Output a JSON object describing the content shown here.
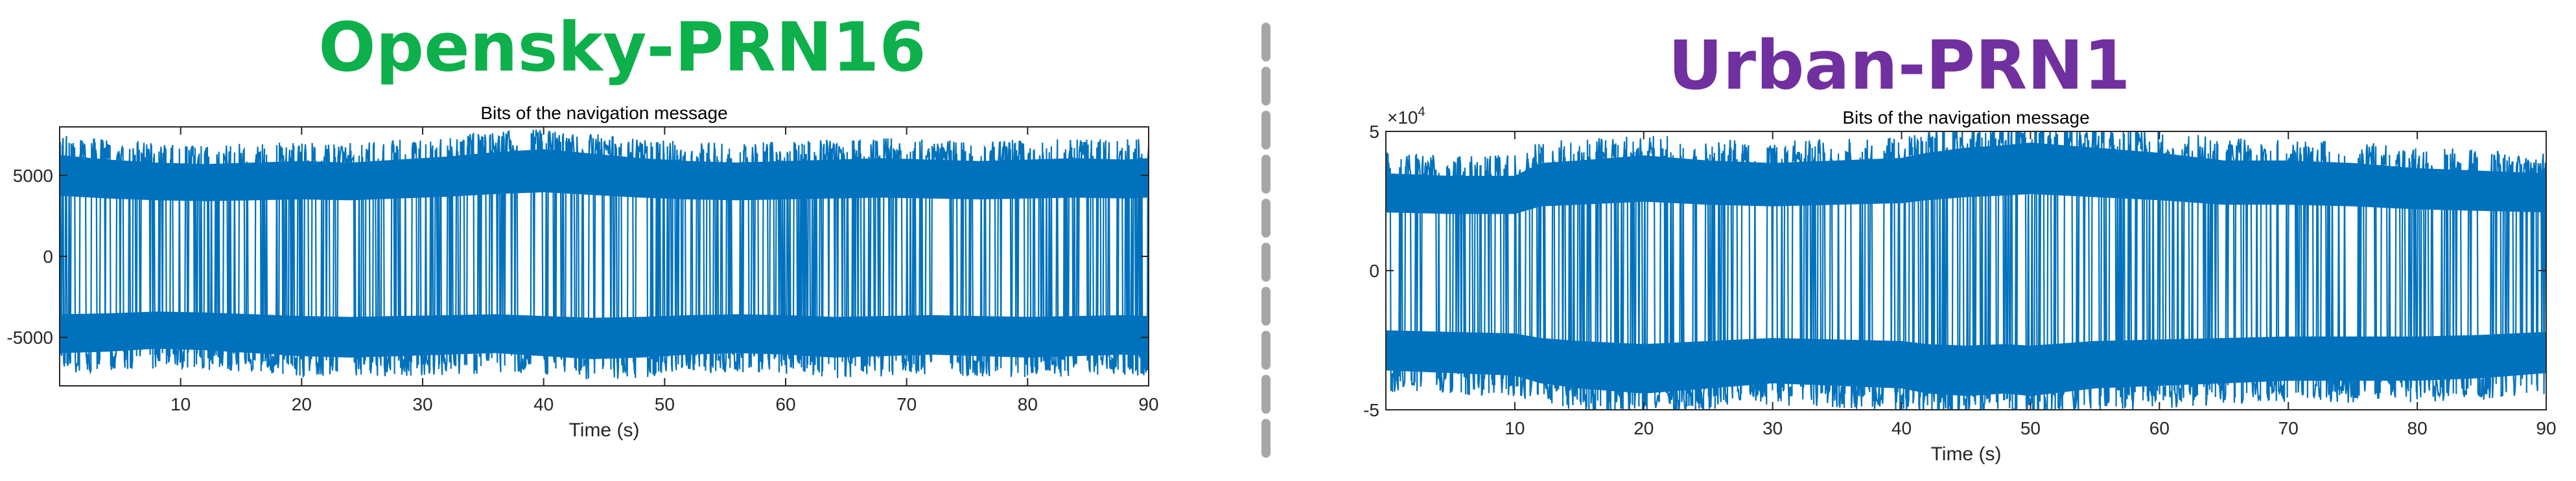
{
  "panels": {
    "left": {
      "title": "Opensky-PRN16",
      "title_color": "#0db04b"
    },
    "right": {
      "title": "Urban-PRN1",
      "title_color": "#7030a0"
    }
  },
  "separator": {
    "style": "dashed",
    "color": "#a6a6a6"
  },
  "chart_data": [
    {
      "type": "line",
      "title": "Bits of the navigation message",
      "xlabel": "Time (s)",
      "ylabel": "",
      "xlim": [
        0,
        90
      ],
      "ylim": [
        -8000,
        8000
      ],
      "xticks": [
        10,
        20,
        30,
        40,
        50,
        60,
        70,
        80,
        90
      ],
      "xtick_labels": [
        "10",
        "20",
        "30",
        "40",
        "50",
        "60",
        "70",
        "80",
        "90"
      ],
      "yticks": [
        -5000,
        0,
        5000
      ],
      "ytick_labels": [
        "-5000",
        "0",
        "5000"
      ],
      "exponent_label": "",
      "color": "#0072bd",
      "grid": false,
      "series": [
        {
          "x": [
            0,
            4,
            8,
            12,
            16,
            20,
            24,
            28,
            32,
            36,
            40,
            44,
            48,
            52,
            56,
            60,
            64,
            68,
            72,
            76,
            80,
            84,
            88,
            90
          ],
          "y_upper": [
            6800,
            6500,
            6300,
            6200,
            6300,
            6400,
            6300,
            6500,
            6700,
            7000,
            7200,
            6900,
            6600,
            6400,
            6300,
            6400,
            6500,
            6600,
            6500,
            6400,
            6500,
            6600,
            6500,
            6600
          ],
          "y_lower": [
            -6500,
            -6400,
            -6200,
            -6300,
            -6500,
            -6700,
            -6800,
            -6700,
            -6600,
            -6500,
            -6700,
            -6900,
            -6800,
            -6600,
            -6500,
            -6600,
            -6800,
            -6700,
            -6600,
            -6700,
            -6800,
            -6700,
            -6600,
            -6700
          ]
        }
      ]
    },
    {
      "type": "line",
      "title": "Bits of the navigation message",
      "xlabel": "Time (s)",
      "ylabel": "",
      "xlim": [
        0,
        90
      ],
      "ylim": [
        -5,
        5
      ],
      "xticks": [
        10,
        20,
        30,
        40,
        50,
        60,
        70,
        80,
        90
      ],
      "xtick_labels": [
        "10",
        "20",
        "30",
        "40",
        "50",
        "60",
        "70",
        "80",
        "90"
      ],
      "yticks": [
        -5,
        0,
        5
      ],
      "ytick_labels": [
        "-5",
        "0",
        "5"
      ],
      "exponent_label": "×10",
      "exponent_power": "4",
      "color": "#0072bd",
      "grid": false,
      "series": [
        {
          "x": [
            0,
            5,
            10,
            12,
            15,
            20,
            25,
            30,
            35,
            40,
            42,
            45,
            48,
            50,
            55,
            60,
            65,
            70,
            75,
            80,
            85,
            90
          ],
          "y_upper": [
            3.8,
            3.7,
            3.7,
            4.2,
            4.3,
            4.5,
            4.3,
            4.2,
            4.3,
            4.4,
            4.6,
            4.8,
            4.9,
            5.0,
            4.8,
            4.6,
            4.3,
            4.3,
            4.2,
            4.0,
            3.9,
            3.8
          ],
          "y_lower": [
            -3.9,
            -4.0,
            -4.1,
            -4.4,
            -4.6,
            -4.8,
            -4.6,
            -4.4,
            -4.5,
            -4.6,
            -4.8,
            -4.9,
            -4.8,
            -4.9,
            -4.6,
            -4.5,
            -4.4,
            -4.3,
            -4.3,
            -4.3,
            -4.2,
            -4.0
          ]
        }
      ]
    }
  ]
}
